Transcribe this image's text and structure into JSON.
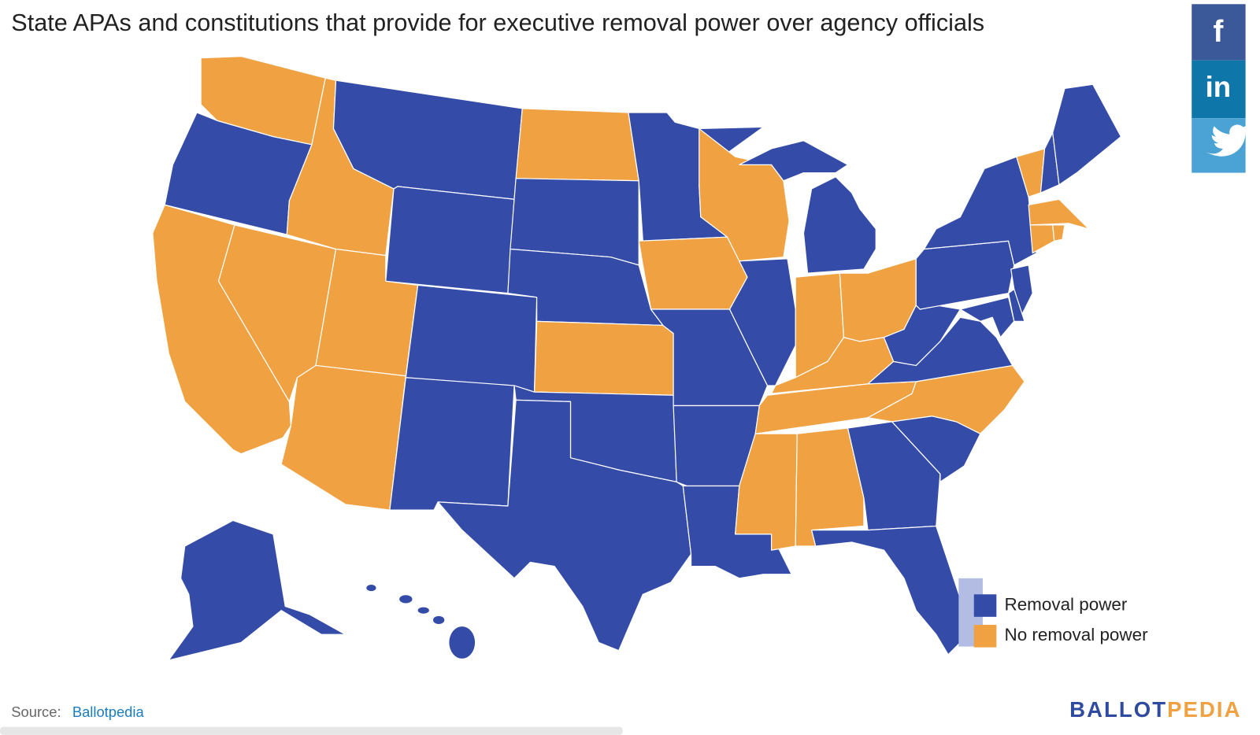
{
  "title": "State APAs and constitutions that provide for executive removal power over agency officials",
  "legend": [
    {
      "label": "Removal power",
      "color": "#344ca8"
    },
    {
      "label": "No removal power",
      "color": "#f0a141"
    }
  ],
  "source": {
    "prefix": "Source:",
    "link": "Ballotpedia"
  },
  "brand": [
    "BALLOT",
    "PEDIA"
  ],
  "share": [
    "f",
    "in"
  ]
}
